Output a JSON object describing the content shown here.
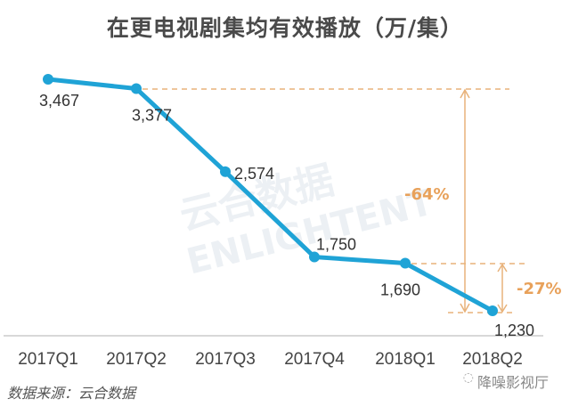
{
  "title": "在更电视剧集均有效播放（万/集）",
  "source": "数据来源：云合数据",
  "brand": "降噪影视厅",
  "watermark": {
    "cn": "云合数据",
    "en": "ENLIGHTENT"
  },
  "colors": {
    "line": "#1fa3d6",
    "annotation": "#e8a15a",
    "text": "#444444"
  },
  "chart_data": {
    "type": "line",
    "title": "在更电视剧集均有效播放（万/集）",
    "categories": [
      "2017Q1",
      "2017Q2",
      "2017Q3",
      "2017Q4",
      "2018Q1",
      "2018Q2"
    ],
    "series": [
      {
        "name": "集均有效播放",
        "values": [
          3467,
          3377,
          2574,
          1750,
          1690,
          1230
        ]
      }
    ],
    "value_labels": [
      "3,467",
      "3,377",
      "2,574",
      "1,750",
      "1,690",
      "1,230"
    ],
    "annotations": [
      {
        "label": "-64%",
        "from": "2017Q2",
        "to": "2018Q2"
      },
      {
        "label": "-27%",
        "from": "2018Q1",
        "to": "2018Q2"
      }
    ],
    "xlabel": "",
    "ylabel": "万/集",
    "grid": false,
    "legend": "none"
  }
}
